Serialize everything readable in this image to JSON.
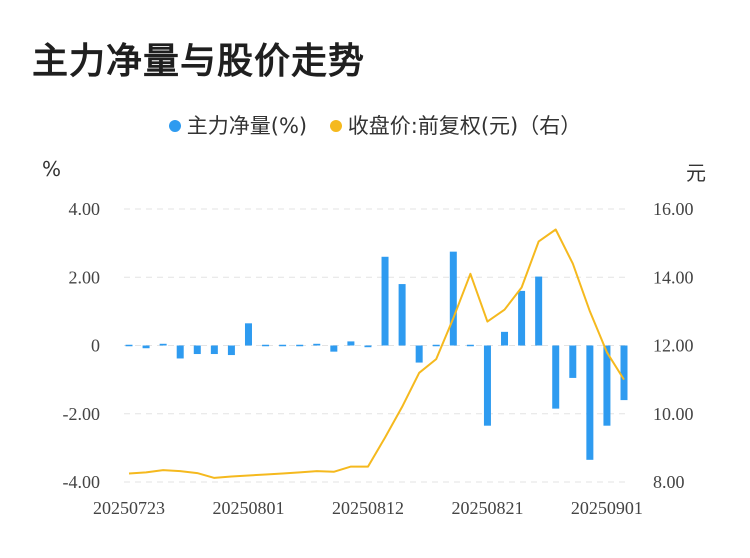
{
  "title": "主力净量与股价走势",
  "legend": {
    "flow": "主力净量(%)",
    "price": "收盘价:前复权(元)（右）"
  },
  "units": {
    "left": "%",
    "right": "元"
  },
  "colors": {
    "flow": "#2e9bf0",
    "price": "#f5b91e",
    "grid": "#e3e3e3"
  },
  "chart_data": {
    "type": "bar+line",
    "y_left": {
      "min": -4,
      "max": 4,
      "ticks": [
        "4.00",
        "2.00",
        "0",
        "-2.00",
        "-4.00"
      ]
    },
    "y_right": {
      "min": 8,
      "max": 16,
      "ticks": [
        "16.00",
        "14.00",
        "12.00",
        "10.00",
        "8.00"
      ]
    },
    "x_tick_labels": [
      {
        "index": 0,
        "label": "20250723"
      },
      {
        "index": 7,
        "label": "20250801"
      },
      {
        "index": 14,
        "label": "20250812"
      },
      {
        "index": 21,
        "label": "20250821"
      },
      {
        "index": 28,
        "label": "20250901"
      }
    ],
    "series": [
      {
        "name": "主力净量(%)",
        "type": "bar",
        "axis": "left",
        "values": [
          0.02,
          -0.08,
          0.05,
          -0.38,
          -0.25,
          -0.25,
          -0.28,
          0.65,
          0.03,
          0.03,
          0.02,
          0.05,
          -0.18,
          0.12,
          -0.05,
          2.6,
          1.8,
          -0.5,
          0.0,
          2.75,
          0.02,
          -2.35,
          0.4,
          1.6,
          2.02,
          -1.85,
          -0.95,
          -3.35,
          -2.35,
          -1.6
        ]
      },
      {
        "name": "收盘价:前复权(元)（右）",
        "type": "line",
        "axis": "right",
        "values": [
          8.25,
          8.28,
          8.35,
          8.32,
          8.26,
          8.12,
          8.16,
          8.19,
          8.22,
          8.25,
          8.28,
          8.32,
          8.3,
          8.45,
          8.45,
          9.3,
          10.2,
          11.2,
          11.6,
          12.8,
          14.1,
          12.7,
          13.05,
          13.7,
          15.05,
          15.4,
          14.4,
          13.0,
          11.8,
          11.0
        ]
      }
    ]
  }
}
